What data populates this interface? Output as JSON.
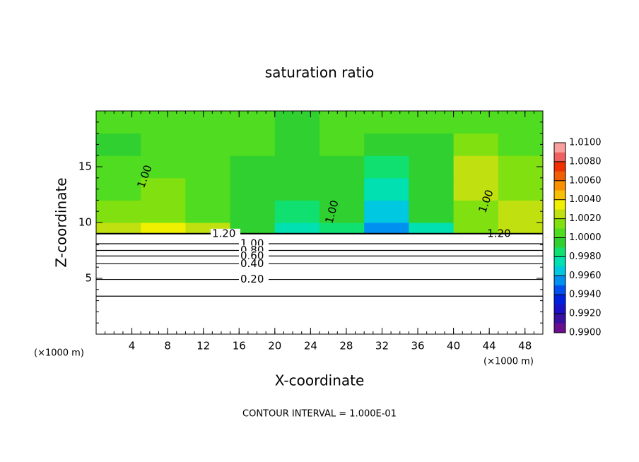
{
  "chart_data": {
    "type": "contour",
    "title": "saturation ratio",
    "x_label": "X-coordinate",
    "y_label": "Z-coordinate",
    "x_unit_left": "(×1000 m)",
    "x_unit_right": "(×1000 m)",
    "footer": "CONTOUR INTERVAL = 1.000E-01",
    "xlim": [
      0,
      50
    ],
    "ylim": [
      0,
      20
    ],
    "xticks": [
      4,
      8,
      12,
      16,
      20,
      24,
      28,
      32,
      36,
      40,
      44,
      48
    ],
    "yticks": [
      5,
      10,
      15
    ],
    "field": {
      "x_edges": [
        0,
        5,
        10,
        15,
        20,
        25,
        30,
        35,
        40,
        45,
        50
      ],
      "z_edges": [
        9,
        10,
        12,
        14,
        16,
        18,
        20
      ],
      "values": [
        [
          1.002,
          1.003,
          1.002,
          0.999,
          0.997,
          0.998,
          0.995,
          0.997,
          1.001,
          1.002
        ],
        [
          1.001,
          1.001,
          1.0,
          0.999,
          0.998,
          0.999,
          0.996,
          0.999,
          1.001,
          1.002
        ],
        [
          1.0,
          1.001,
          1.0,
          0.999,
          0.999,
          0.999,
          0.997,
          0.999,
          1.002,
          1.001
        ],
        [
          1.0,
          1.0,
          1.0,
          0.999,
          0.999,
          0.999,
          0.998,
          0.999,
          1.002,
          1.001
        ],
        [
          0.999,
          1.0,
          1.0,
          1.0,
          0.999,
          1.0,
          0.999,
          0.999,
          1.001,
          1.0
        ],
        [
          1.0,
          1.0,
          1.0,
          1.0,
          0.999,
          1.0,
          1.0,
          1.0,
          1.0,
          1.0
        ]
      ]
    },
    "contours": [
      {
        "label": "1.20",
        "z": 9.0
      },
      {
        "label": "1.00",
        "z": 8.1
      },
      {
        "label": "0.80",
        "z": 7.5
      },
      {
        "label": "0.60",
        "z": 7.0
      },
      {
        "label": "0.40",
        "z": 6.3
      },
      {
        "label": "0.20",
        "z": 4.9
      },
      {
        "label": null,
        "z": 3.4
      }
    ],
    "field_labels": [
      "1.00",
      "1.00",
      "1.00",
      "1.20"
    ],
    "colorbar": {
      "lim": [
        0.99,
        1.01
      ],
      "colors": [
        "#6a0d8f",
        "#3a10a0",
        "#1a10c8",
        "#0020e0",
        "#0050f0",
        "#0090f0",
        "#00c8e0",
        "#00e0b0",
        "#10e070",
        "#30d030",
        "#50dc20",
        "#80e010",
        "#c0e010",
        "#f0f000",
        "#f8c000",
        "#f89000",
        "#f06000",
        "#f03000",
        "#f06060",
        "#f8a0a0"
      ],
      "ticks": [
        {
          "value": 0.99,
          "label": "0.9900"
        },
        {
          "value": 0.992,
          "label": "0.9920"
        },
        {
          "value": 0.994,
          "label": "0.9940"
        },
        {
          "value": 0.996,
          "label": "0.9960"
        },
        {
          "value": 0.998,
          "label": "0.9980"
        },
        {
          "value": 1.0,
          "label": "1.0000"
        },
        {
          "value": 1.002,
          "label": "1.0020"
        },
        {
          "value": 1.004,
          "label": "1.0040"
        },
        {
          "value": 1.006,
          "label": "1.0060"
        },
        {
          "value": 1.008,
          "label": "1.0080"
        },
        {
          "value": 1.01,
          "label": "1.0100"
        }
      ]
    }
  }
}
